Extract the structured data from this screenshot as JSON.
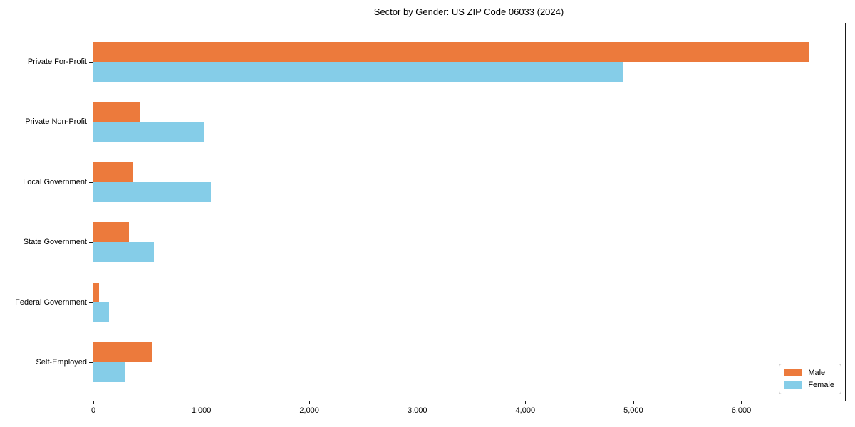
{
  "title": "Sector by Gender: US ZIP Code 06033 (2024)",
  "chart_data": {
    "type": "bar",
    "orientation": "horizontal",
    "title": "Sector by Gender: US ZIP Code 06033 (2024)",
    "xlabel": "",
    "ylabel": "",
    "categories": [
      "Private For-Profit",
      "Private Non-Profit",
      "Local Government",
      "State Government",
      "Federal Government",
      "Self-Employed"
    ],
    "series": [
      {
        "name": "Male",
        "color": "#EC7A3C",
        "values": [
          6630,
          435,
          365,
          330,
          53,
          545
        ]
      },
      {
        "name": "Female",
        "color": "#85CDE8",
        "values": [
          4905,
          1020,
          1090,
          560,
          145,
          300
        ]
      }
    ],
    "xlim": [
      0,
      6960
    ],
    "xticks": {
      "values": [
        0,
        1000,
        2000,
        3000,
        4000,
        5000,
        6000
      ],
      "labels": [
        "0",
        "1,000",
        "2,000",
        "3,000",
        "4,000",
        "5,000",
        "6,000"
      ]
    },
    "grid": false,
    "legend_position": "lower right"
  }
}
